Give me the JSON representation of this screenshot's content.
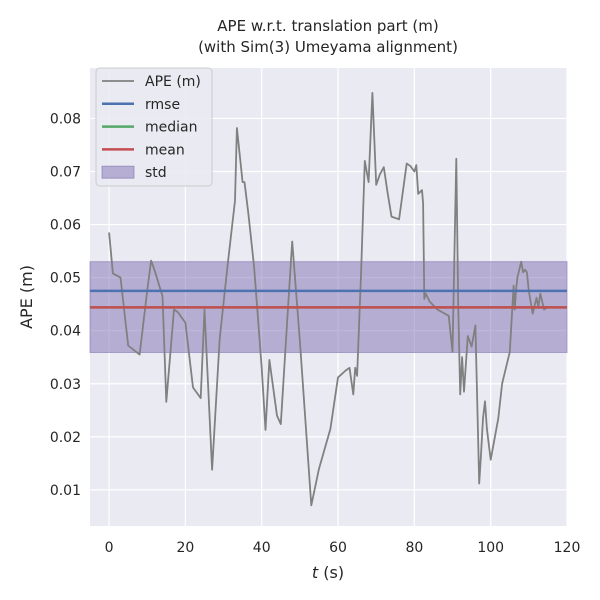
{
  "chart_data": {
    "type": "line",
    "title": "APE w.r.t. translation part (m)",
    "subtitle": "(with Sim(3) Umeyama alignment)",
    "xlabel_italic": "t",
    "xlabel_unit": " (s)",
    "ylabel": "APE (m)",
    "xlim": [
      -5,
      120
    ],
    "ylim": [
      0.0032,
      0.0895
    ],
    "xticks": [
      0,
      20,
      40,
      60,
      80,
      100,
      120
    ],
    "yticks": [
      0.01,
      0.02,
      0.03,
      0.04,
      0.05,
      0.06,
      0.07,
      0.08
    ],
    "grid": true,
    "legend_position": "top-left",
    "legend": [
      "APE (m)",
      "rmse",
      "median",
      "mean",
      "std"
    ],
    "stats": {
      "rmse": 0.0475,
      "median": 0.0444,
      "mean": 0.0444,
      "std_low": 0.0359,
      "std_high": 0.053
    },
    "colors": {
      "background": "#eaeaf2",
      "grid": "#ffffff",
      "ape": "#808080",
      "rmse": "#4c72b0",
      "median": "#55a868",
      "mean": "#c44e52",
      "std": "#8172b2"
    },
    "series": [
      {
        "name": "APE (m)",
        "x": [
          0,
          1,
          3,
          5,
          8,
          10,
          11,
          12,
          14,
          15,
          17,
          18,
          20,
          22,
          24,
          25,
          27,
          29,
          31,
          33,
          33.5,
          35,
          35.5,
          36.5,
          38,
          40,
          41,
          42,
          44,
          45,
          47,
          48,
          50,
          53,
          55,
          58,
          60,
          62,
          63,
          64,
          64.5,
          65,
          66,
          67,
          68,
          69,
          70,
          71,
          72,
          73,
          74,
          76,
          78,
          79,
          80,
          80.5,
          81,
          82,
          82.3,
          82.6,
          83,
          84,
          86,
          89,
          90,
          91,
          91.5,
          92,
          92.5,
          93,
          94,
          95,
          96,
          97,
          97.5,
          98,
          98.5,
          99,
          100,
          102,
          103,
          105,
          106,
          106.3,
          106.7,
          107,
          108,
          108.5,
          109,
          109.5,
          110,
          111,
          112,
          112.5,
          113,
          114,
          115
        ],
        "values": [
          0.0585,
          0.0508,
          0.05,
          0.0372,
          0.0355,
          0.0475,
          0.0532,
          0.0512,
          0.0465,
          0.0266,
          0.044,
          0.0435,
          0.0415,
          0.0293,
          0.0273,
          0.044,
          0.0138,
          0.0385,
          0.052,
          0.0645,
          0.0782,
          0.068,
          0.068,
          0.062,
          0.052,
          0.033,
          0.0213,
          0.0345,
          0.024,
          0.0224,
          0.0455,
          0.0568,
          0.038,
          0.0071,
          0.014,
          0.0215,
          0.0312,
          0.0325,
          0.033,
          0.028,
          0.033,
          0.0315,
          0.05,
          0.072,
          0.068,
          0.0848,
          0.0675,
          0.0695,
          0.0708,
          0.066,
          0.0615,
          0.061,
          0.0715,
          0.071,
          0.07,
          0.0712,
          0.0658,
          0.0665,
          0.064,
          0.046,
          0.047,
          0.0455,
          0.044,
          0.0428,
          0.036,
          0.0724,
          0.045,
          0.028,
          0.035,
          0.0285,
          0.039,
          0.037,
          0.041,
          0.0112,
          0.017,
          0.0235,
          0.0267,
          0.0215,
          0.0157,
          0.0235,
          0.03,
          0.036,
          0.0485,
          0.044,
          0.048,
          0.05,
          0.053,
          0.051,
          0.0515,
          0.051,
          0.0475,
          0.0432,
          0.0462,
          0.0445,
          0.047,
          0.044,
          0.0445
        ]
      }
    ]
  }
}
